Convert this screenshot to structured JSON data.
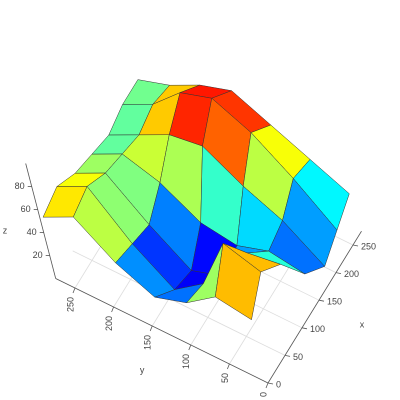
{
  "chart_data": {
    "type": "surface",
    "x": [
      0,
      45,
      90,
      135,
      180,
      225,
      270
    ],
    "y": [
      0,
      45,
      90,
      135,
      180,
      225,
      270
    ],
    "z": [
      [
        55,
        60,
        40,
        30,
        45,
        70,
        55
      ],
      [
        75,
        85,
        35,
        15,
        40,
        75,
        60
      ],
      [
        60,
        55,
        20,
        10,
        35,
        65,
        50
      ],
      [
        30,
        35,
        25,
        30,
        50,
        60,
        45
      ],
      [
        15,
        40,
        55,
        75,
        70,
        55,
        40
      ],
      [
        25,
        55,
        80,
        95,
        85,
        60,
        45
      ],
      [
        35,
        50,
        65,
        80,
        70,
        55,
        45
      ]
    ],
    "xlim": [
      0,
      275
    ],
    "ylim": [
      0,
      275
    ],
    "zlim": [
      0,
      100
    ],
    "xticks": [
      0,
      50,
      100,
      150,
      200,
      250
    ],
    "yticks": [
      0,
      50,
      100,
      150,
      200,
      250
    ],
    "zticks": [
      20,
      40,
      60,
      80
    ],
    "xlabel": "x",
    "ylabel": "y",
    "zlabel": "z",
    "colorscale": "jet",
    "grid": true
  }
}
